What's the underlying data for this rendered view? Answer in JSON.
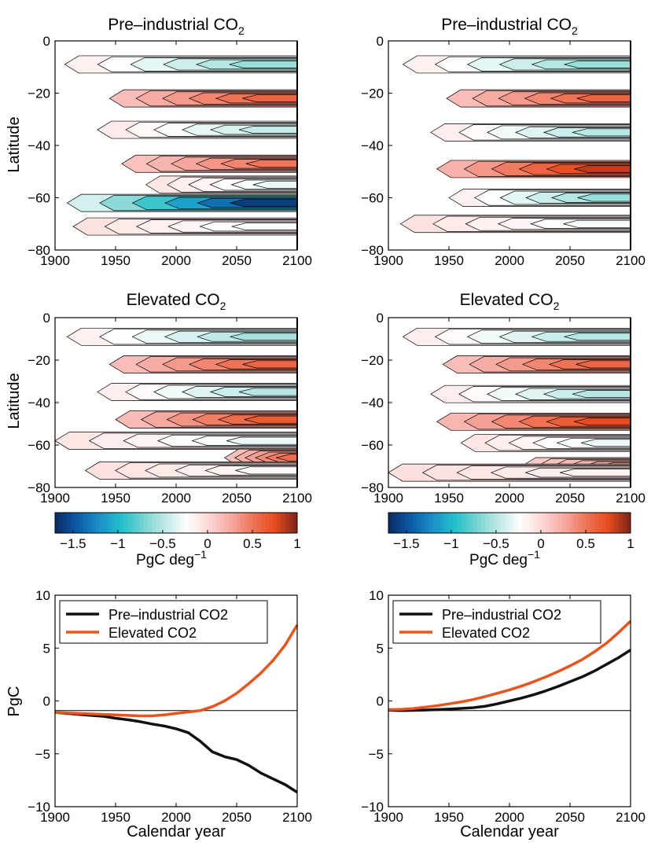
{
  "colors": {
    "pre_industrial": "#111111",
    "elevated": "#e8531e",
    "colormap": [
      "#0b2a63",
      "#0a5aa6",
      "#1a8fc8",
      "#20c0cc",
      "#74d3d0",
      "#bfe9e6",
      "#ffffff",
      "#fbd6d4",
      "#f6a8a0",
      "#ef7356",
      "#e84a1e",
      "#7a2618"
    ]
  },
  "chart_data": [
    {
      "type": "heatmap",
      "panel": "top-left",
      "title": "Pre–industrial CO",
      "title_sub": "2",
      "xlabel": "",
      "ylabel": "Latitude",
      "xlim": [
        1900,
        2100
      ],
      "ylim": [
        -80,
        0
      ],
      "x_ticks": [
        "1900",
        "1950",
        "2000",
        "2050",
        "2100"
      ],
      "y_ticks": [
        "0",
        "−20",
        "−40",
        "−60",
        "−80"
      ],
      "bands": [
        {
          "lat": -9,
          "value": -0.6,
          "start": 1908
        },
        {
          "lat": -22,
          "value": 0.6,
          "start": 1945
        },
        {
          "lat": -34,
          "value": -0.45,
          "start": 1935
        },
        {
          "lat": -47,
          "value": 0.5,
          "start": 1955
        },
        {
          "lat": -55,
          "value": -0.3,
          "start": 1975
        },
        {
          "lat": -62,
          "value": -1.6,
          "start": 1910
        },
        {
          "lat": -71,
          "value": -0.25,
          "start": 1915
        }
      ]
    },
    {
      "type": "heatmap",
      "panel": "top-right",
      "title": "Pre–industrial CO",
      "title_sub": "2",
      "xlabel": "",
      "ylabel": "",
      "xlim": [
        1900,
        2100
      ],
      "ylim": [
        -80,
        0
      ],
      "x_ticks": [
        "1900",
        "1950",
        "2000",
        "2050",
        "2100"
      ],
      "y_ticks": [
        "0",
        "−20",
        "−40",
        "−60",
        "−80"
      ],
      "bands": [
        {
          "lat": -9,
          "value": -0.6,
          "start": 1912
        },
        {
          "lat": -22,
          "value": 0.6,
          "start": 1948
        },
        {
          "lat": -35,
          "value": -0.5,
          "start": 1935
        },
        {
          "lat": -49,
          "value": 0.85,
          "start": 1940
        },
        {
          "lat": -60,
          "value": -0.6,
          "start": 1950
        },
        {
          "lat": -70,
          "value": -0.25,
          "start": 1910
        }
      ]
    },
    {
      "type": "heatmap",
      "panel": "middle-left",
      "title": "Elevated CO",
      "title_sub": "2",
      "xlabel": "",
      "ylabel": "Latitude",
      "xlim": [
        1900,
        2100
      ],
      "ylim": [
        -80,
        0
      ],
      "x_ticks": [
        "1900",
        "1950",
        "2000",
        "2050",
        "2100"
      ],
      "y_ticks": [
        "0",
        "−20",
        "−40",
        "−60",
        "−80"
      ],
      "colorbar": {
        "label": "PgC deg",
        "label_sup": "−1",
        "ticks": [
          "−1.5",
          "−1",
          "−0.5",
          "0",
          "0.5",
          "1"
        ],
        "range": [
          -1.7,
          1
        ]
      },
      "bands": [
        {
          "lat": -9,
          "value": -0.55,
          "start": 1910
        },
        {
          "lat": -22,
          "value": 0.6,
          "start": 1945
        },
        {
          "lat": -35,
          "value": -0.5,
          "start": 1935
        },
        {
          "lat": -48,
          "value": 0.65,
          "start": 1950
        },
        {
          "lat": -58,
          "value": -0.3,
          "start": 1900
        },
        {
          "lat": -66,
          "value": 0.55,
          "start": 2040
        },
        {
          "lat": -72,
          "value": -0.2,
          "start": 1925
        }
      ]
    },
    {
      "type": "heatmap",
      "panel": "middle-right",
      "title": "Elevated CO",
      "title_sub": "2",
      "xlabel": "",
      "ylabel": "",
      "xlim": [
        1900,
        2100
      ],
      "ylim": [
        -80,
        0
      ],
      "x_ticks": [
        "1900",
        "1950",
        "2000",
        "2050",
        "2100"
      ],
      "y_ticks": [
        "0",
        "−20",
        "−40",
        "−60",
        "−80"
      ],
      "colorbar": {
        "label": "PgC deg",
        "label_sup": "−1",
        "ticks": [
          "−1.5",
          "−1",
          "−0.5",
          "0",
          "0.5",
          "1"
        ],
        "range": [
          -1.7,
          1
        ]
      },
      "bands": [
        {
          "lat": -9,
          "value": -0.5,
          "start": 1912
        },
        {
          "lat": -22,
          "value": 0.6,
          "start": 1945
        },
        {
          "lat": -36,
          "value": -0.5,
          "start": 1935
        },
        {
          "lat": -49,
          "value": 0.75,
          "start": 1940
        },
        {
          "lat": -59,
          "value": -0.3,
          "start": 1960
        },
        {
          "lat": -70,
          "value": 0.3,
          "start": 2010
        },
        {
          "lat": -73,
          "value": -0.15,
          "start": 1900
        }
      ]
    },
    {
      "type": "line",
      "panel": "bottom-left",
      "xlabel": "Calendar year",
      "ylabel": "PgC",
      "xlim": [
        1900,
        2100
      ],
      "ylim": [
        -10,
        12
      ],
      "x_ticks": [
        "1900",
        "1950",
        "2000",
        "2050",
        "2100"
      ],
      "y_ticks": [
        "10",
        "5",
        "0",
        "−5",
        "−10"
      ],
      "legend_position": "top-left",
      "x": [
        1900,
        1910,
        1920,
        1930,
        1940,
        1950,
        1960,
        1970,
        1980,
        1990,
        2000,
        2010,
        2020,
        2030,
        2040,
        2050,
        2060,
        2070,
        2080,
        2090,
        2100
      ],
      "series": [
        {
          "name": "Pre–industrial CO2",
          "values": [
            -0.2,
            -0.3,
            -0.4,
            -0.5,
            -0.6,
            -0.8,
            -0.95,
            -1.15,
            -1.4,
            -1.6,
            -1.9,
            -2.3,
            -3.2,
            -4.3,
            -4.8,
            -5.1,
            -5.7,
            -6.5,
            -7.1,
            -7.7,
            -8.5
          ]
        },
        {
          "name": "Elevated CO2",
          "values": [
            -0.2,
            -0.25,
            -0.3,
            -0.35,
            -0.4,
            -0.45,
            -0.5,
            -0.55,
            -0.55,
            -0.45,
            -0.3,
            -0.15,
            0.0,
            0.4,
            1.0,
            1.8,
            2.8,
            3.9,
            5.2,
            6.8,
            8.9
          ]
        }
      ]
    },
    {
      "type": "line",
      "panel": "bottom-right",
      "xlabel": "Calendar year",
      "ylabel": "",
      "xlim": [
        1900,
        2100
      ],
      "ylim": [
        -10,
        12
      ],
      "x_ticks": [
        "1900",
        "1950",
        "2000",
        "2050",
        "2100"
      ],
      "y_ticks": [
        "10",
        "5",
        "0",
        "−5",
        "−10"
      ],
      "legend_position": "top-left",
      "x": [
        1900,
        1910,
        1920,
        1930,
        1940,
        1950,
        1960,
        1970,
        1980,
        1990,
        2000,
        2010,
        2020,
        2030,
        2040,
        2050,
        2060,
        2070,
        2080,
        2090,
        2100
      ],
      "series": [
        {
          "name": "Pre–industrial CO2",
          "values": [
            0.05,
            0.0,
            0.02,
            0.05,
            0.1,
            0.15,
            0.22,
            0.3,
            0.45,
            0.7,
            1.0,
            1.3,
            1.65,
            2.05,
            2.5,
            3.0,
            3.5,
            4.1,
            4.8,
            5.5,
            6.3
          ]
        },
        {
          "name": "Elevated CO2",
          "values": [
            0.1,
            0.12,
            0.2,
            0.35,
            0.5,
            0.7,
            0.9,
            1.15,
            1.45,
            1.8,
            2.15,
            2.55,
            3.0,
            3.5,
            4.05,
            4.65,
            5.3,
            6.1,
            7.0,
            8.1,
            9.3
          ]
        }
      ]
    }
  ]
}
